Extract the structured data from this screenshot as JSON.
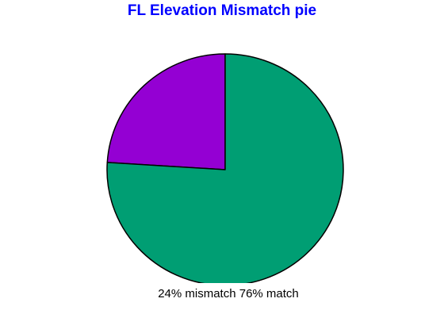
{
  "chart_data": {
    "type": "pie",
    "title": "FL Elevation Mismatch  pie",
    "slices": [
      {
        "label": "mismatch",
        "value": 24,
        "color": "#9400d3"
      },
      {
        "label": "match",
        "value": 76,
        "color": "#009e73"
      }
    ],
    "caption": "24% mismatch  76% match",
    "title_color": "#0000ff",
    "outline_color": "#000000"
  }
}
